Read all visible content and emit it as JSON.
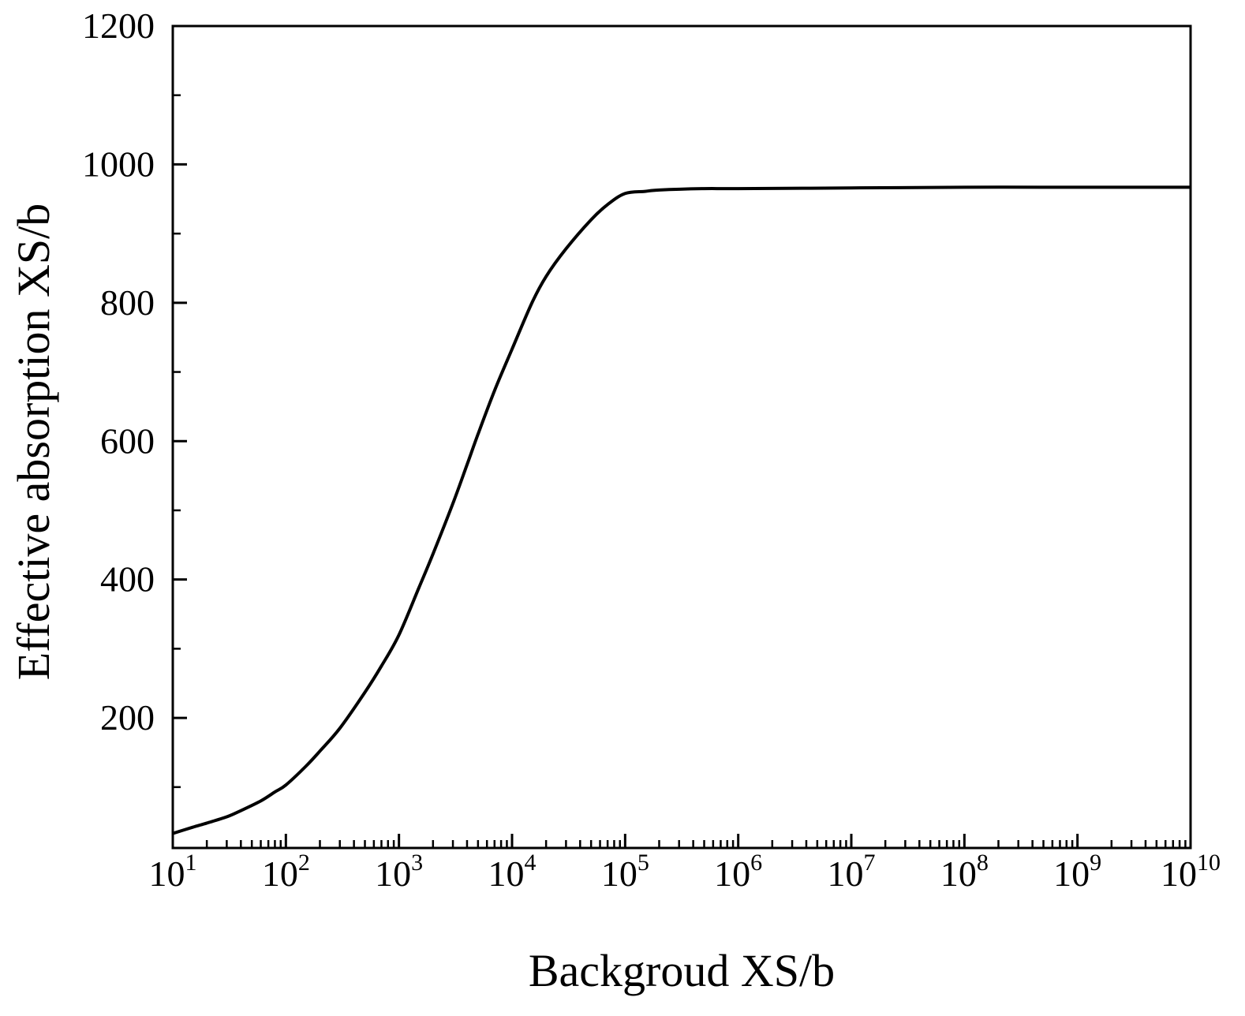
{
  "chart_data": {
    "type": "line",
    "title": "",
    "xlabel": "Backgroud XS/b",
    "ylabel": "Effective absorption XS/b",
    "xscale": "log",
    "xlim": [
      10,
      10000000000
    ],
    "ylim": [
      12,
      1200
    ],
    "grid": false,
    "legend": "none",
    "x_ticks": [
      {
        "base": "10",
        "exp": "1"
      },
      {
        "base": "10",
        "exp": "2"
      },
      {
        "base": "10",
        "exp": "3"
      },
      {
        "base": "10",
        "exp": "4"
      },
      {
        "base": "10",
        "exp": "5"
      },
      {
        "base": "10",
        "exp": "6"
      },
      {
        "base": "10",
        "exp": "7"
      },
      {
        "base": "10",
        "exp": "8"
      },
      {
        "base": "10",
        "exp": "9"
      },
      {
        "base": "10",
        "exp": "10"
      }
    ],
    "y_ticks": [
      {
        "value": 200,
        "label": "200"
      },
      {
        "value": 400,
        "label": "400"
      },
      {
        "value": 600,
        "label": "600"
      },
      {
        "value": 800,
        "label": "800"
      },
      {
        "value": 1000,
        "label": "1000"
      },
      {
        "value": 1200,
        "label": "1200"
      }
    ],
    "series": [
      {
        "color": "#000000",
        "x": [
          10,
          15,
          20,
          30,
          40,
          60,
          80,
          100,
          150,
          200,
          300,
          500,
          700,
          1000,
          1500,
          2000,
          3000,
          4000,
          5000,
          7000,
          10000,
          15000,
          20000,
          30000,
          50000,
          70000,
          100000,
          150000,
          200000,
          500000,
          1000000,
          10000000,
          100000000,
          1000000000,
          10000000000
        ],
        "y": [
          33,
          42,
          48,
          57,
          66,
          80,
          93,
          103,
          130,
          152,
          185,
          237,
          275,
          320,
          388,
          437,
          510,
          566,
          610,
          673,
          733,
          800,
          838,
          878,
          920,
          942,
          958,
          961,
          963,
          965,
          965,
          966,
          967,
          967,
          967
        ]
      }
    ]
  }
}
